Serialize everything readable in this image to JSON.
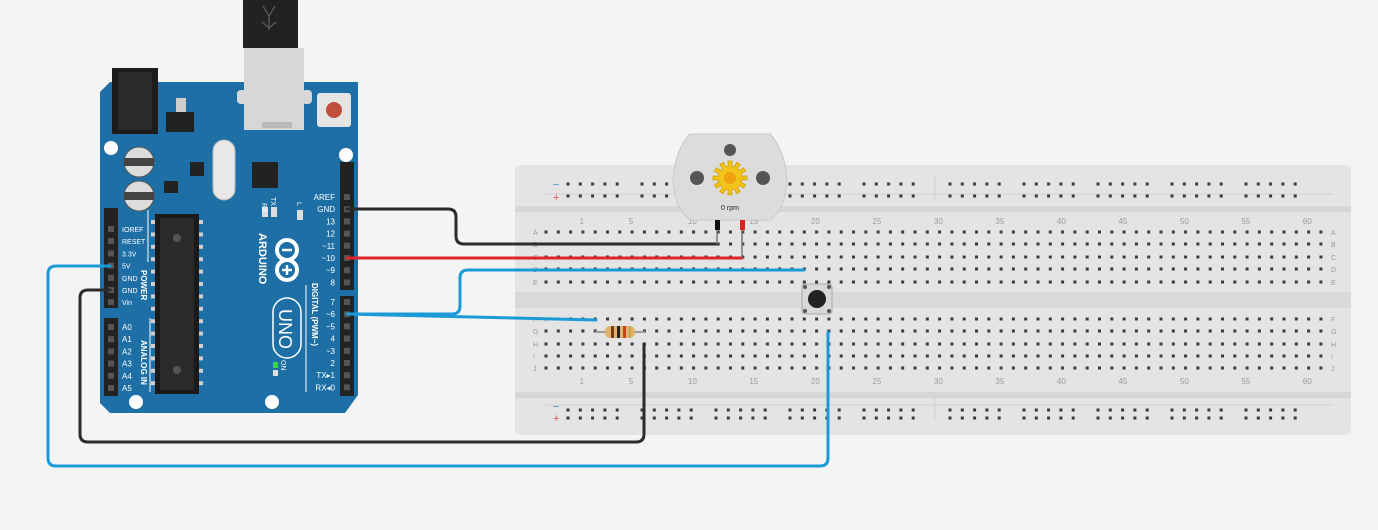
{
  "colors": {
    "board": "#1d6fa5",
    "board_dark": "#155684",
    "header": "#222222",
    "breadboard": "#e3e3e3",
    "wire_black": "#2b2b2b",
    "wire_red": "#e0242a",
    "wire_blue": "#1c9ad6",
    "motor_body": "#dcdcdc",
    "gear": "#f2c318"
  },
  "arduino": {
    "brand": "ARDUINO",
    "model": "UNO",
    "on_label": "ON",
    "led_labels": [
      "TX",
      "RX",
      "L"
    ],
    "power_pins": [
      "IOREF",
      "RESET",
      "3.3V",
      "5V",
      "GND",
      "GND",
      "Vin"
    ],
    "power_title": "POWER",
    "analog_pins": [
      "A0",
      "A1",
      "A2",
      "A3",
      "A4",
      "A5"
    ],
    "analog_title": "ANALOG IN",
    "digital_pins_top": [
      "AREF",
      "GND",
      "13",
      "12",
      "~11",
      "~10",
      "~9",
      "8"
    ],
    "digital_pins_bottom": [
      "7",
      "~6",
      "~5",
      "4",
      "~3",
      "2",
      "TX▸1",
      "RX◂0"
    ],
    "digital_title": "DIGITAL (PWM~)"
  },
  "motor": {
    "readout": "0 rpm"
  },
  "breadboard": {
    "column_numbers": [
      "1",
      "5",
      "10",
      "15",
      "20",
      "25",
      "30",
      "35",
      "40",
      "45",
      "50",
      "55",
      "60"
    ],
    "rows_top": [
      "A",
      "B",
      "C",
      "D",
      "E"
    ],
    "rows_bottom": [
      "F",
      "G",
      "H",
      "I",
      "J"
    ],
    "rail_minus": "−",
    "rail_plus": "+"
  }
}
